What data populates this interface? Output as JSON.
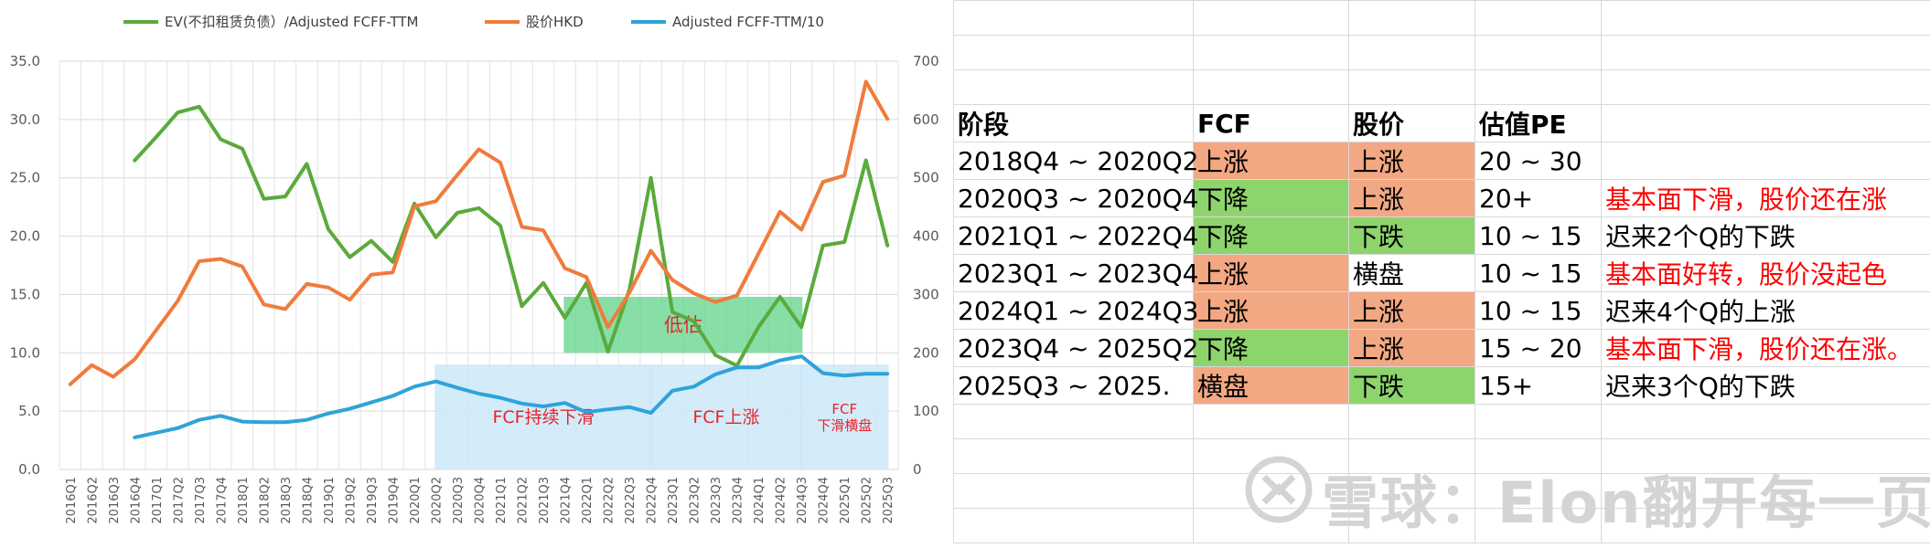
{
  "chart_data": {
    "type": "line",
    "categories": [
      "2016Q1",
      "2016Q2",
      "2016Q3",
      "2016Q4",
      "2017Q1",
      "2017Q2",
      "2017Q3",
      "2017Q4",
      "2018Q1",
      "2018Q2",
      "2018Q3",
      "2018Q4",
      "2019Q1",
      "2019Q2",
      "2019Q3",
      "2019Q4",
      "2020Q1",
      "2020Q2",
      "2020Q3",
      "2020Q4",
      "2021Q1",
      "2021Q2",
      "2021Q3",
      "2021Q4",
      "2022Q1",
      "2022Q2",
      "2022Q3",
      "2022Q4",
      "2023Q1",
      "2023Q2",
      "2023Q3",
      "2023Q4",
      "2024Q1",
      "2024Q2",
      "2024Q3",
      "2024Q4",
      "2025Q1",
      "2025Q2",
      "2025Q3"
    ],
    "y_left_ticks": [
      "0.0",
      "5.0",
      "10.0",
      "15.0",
      "20.0",
      "25.0",
      "30.0",
      "35.0"
    ],
    "y_right_ticks": [
      "0",
      "100",
      "200",
      "300",
      "400",
      "500",
      "600",
      "700"
    ],
    "ylim_left": [
      0,
      35
    ],
    "ylim_right": [
      0,
      700
    ],
    "grid": true,
    "legend_position": "top",
    "series": [
      {
        "name": "EV(不扣租赁负债）/Adjusted FCFF-TTM",
        "color": "#5aaa3c",
        "axis": "left",
        "values": [
          null,
          null,
          null,
          26.5,
          28.5,
          30.6,
          31.1,
          28.3,
          27.5,
          23.2,
          23.4,
          26.2,
          20.6,
          18.2,
          19.6,
          17.8,
          22.8,
          19.9,
          22.0,
          22.4,
          20.9,
          14.0,
          16.0,
          13.0,
          16.0,
          10.1,
          15.4,
          25.0,
          13.5,
          12.7,
          9.8,
          8.9,
          12.2,
          14.8,
          12.2,
          19.2,
          19.5,
          26.5,
          19.2
        ]
      },
      {
        "name": "股价HKD",
        "color": "#f07b3c",
        "axis": "right",
        "values": [
          146,
          179,
          159,
          189,
          239,
          289,
          357,
          361,
          348,
          283,
          275,
          318,
          312,
          291,
          334,
          338,
          451,
          460,
          505,
          549,
          526,
          416,
          410,
          345,
          330,
          244,
          303,
          375,
          325,
          302,
          287,
          298,
          370,
          442,
          411,
          493,
          504,
          665,
          601
        ]
      },
      {
        "name": "Adjusted FCFF-TTM/10",
        "color": "#2ea3db",
        "axis": "right",
        "values": [
          null,
          null,
          null,
          55,
          63,
          71,
          85,
          92,
          82,
          81,
          81,
          85,
          96,
          104,
          115,
          126,
          142,
          151,
          140,
          130,
          123,
          113,
          108,
          114,
          98,
          103,
          107,
          97,
          135,
          142,
          163,
          175,
          175,
          187,
          194,
          165,
          161,
          164,
          164
        ]
      }
    ],
    "annotations": [
      {
        "text": "低估",
        "from": "2021Q4",
        "to": "2024Q3",
        "y_range_left": [
          10,
          14.8
        ],
        "fill": "#5fd48a"
      },
      {
        "text": "FCF持续下滑",
        "from": "2020Q2",
        "to": "2022Q4",
        "y_range_left": [
          0,
          9
        ],
        "fill": "#cde8f8"
      },
      {
        "text": "FCF上涨",
        "from": "2022Q4",
        "to": "2024Q3",
        "y_range_left": [
          0,
          9
        ],
        "fill": "#cde8f8"
      },
      {
        "text": "FCF\n下滑横盘",
        "from": "2024Q3",
        "to": "2025Q3",
        "y_range_left": [
          0,
          9
        ],
        "fill": "#cde8f8"
      }
    ]
  },
  "table": {
    "headers": [
      "阶段",
      "FCF",
      "股价",
      "估值PE",
      ""
    ],
    "rows": [
      {
        "stage": "2018Q4 ~ 2020Q2",
        "fcf": "上涨",
        "fcf_color": "red",
        "price": "上涨",
        "price_color": "red",
        "pe": "20 ~ 30",
        "note": "",
        "note_red": false
      },
      {
        "stage": "2020Q3 ~ 2020Q4",
        "fcf": "下降",
        "fcf_color": "green",
        "price": "上涨",
        "price_color": "red",
        "pe": "20+",
        "note": "基本面下滑，股价还在涨",
        "note_red": true
      },
      {
        "stage": "2021Q1 ~ 2022Q4",
        "fcf": "下降",
        "fcf_color": "green",
        "price": "下跌",
        "price_color": "green",
        "pe": "10 ~ 15",
        "note": "迟来2个Q的下跌",
        "note_red": false
      },
      {
        "stage": "2023Q1 ~ 2023Q4",
        "fcf": "上涨",
        "fcf_color": "red",
        "price": "横盘",
        "price_color": "none",
        "pe": "10 ~ 15",
        "note": "基本面好转，股价没起色",
        "note_red": true
      },
      {
        "stage": "2024Q1 ~ 2024Q3",
        "fcf": "上涨",
        "fcf_color": "red",
        "price": "上涨",
        "price_color": "red",
        "pe": "10 ~ 15",
        "note": "迟来4个Q的上涨",
        "note_red": false
      },
      {
        "stage": "2023Q4 ~ 2025Q2",
        "fcf": "下降",
        "fcf_color": "green",
        "price": "上涨",
        "price_color": "red",
        "pe": "15 ~ 20",
        "note": "基本面下滑，股价还在涨。",
        "note_red": true
      },
      {
        "stage": "2025Q3 ~ 2025.",
        "fcf": "横盘",
        "fcf_color": "red",
        "price": "下跌",
        "price_color": "green",
        "pe": "15+",
        "note": "迟来3个Q的下跌",
        "note_red": false
      }
    ]
  },
  "watermark": {
    "text": "雪球：Elon翻开每一页",
    "logo_icon": "snowball-logo-icon"
  },
  "colors": {
    "cell_red": "#f2a883",
    "cell_green": "#8ed46c",
    "note_red": "#ff0000"
  }
}
